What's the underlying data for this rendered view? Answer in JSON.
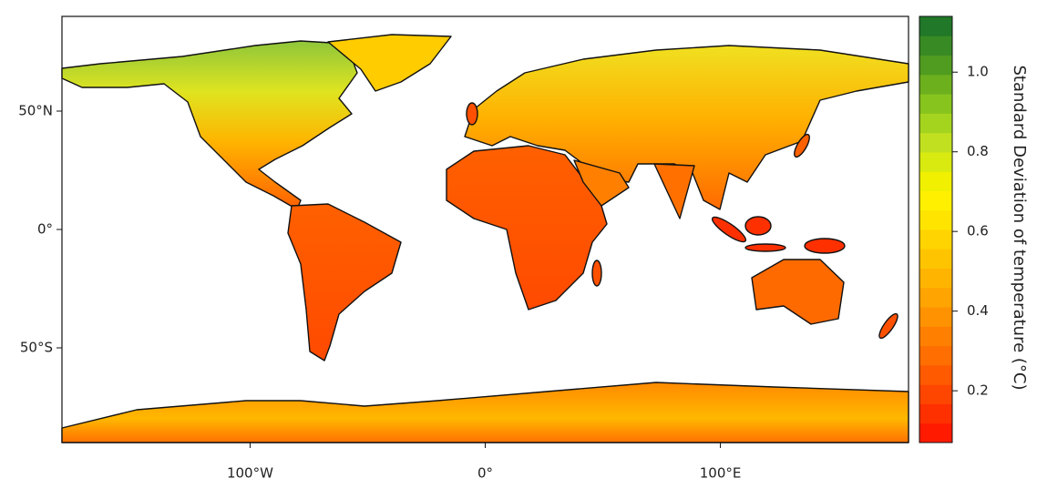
{
  "chart_data": {
    "type": "map",
    "xlim": [
      -180,
      180
    ],
    "ylim": [
      -90,
      90
    ],
    "xticks": [
      {
        "value": -100,
        "label": "100°W"
      },
      {
        "value": 0,
        "label": "0°"
      },
      {
        "value": 100,
        "label": "100°E"
      }
    ],
    "yticks": [
      {
        "value": 50,
        "label": "50°N"
      },
      {
        "value": 0,
        "label": "0°"
      },
      {
        "value": -50,
        "label": "50°S"
      }
    ],
    "colorbar": {
      "label": "Standard Deviation of temperature (°C)",
      "lim": [
        0.07,
        1.14
      ],
      "ticks": [
        0.2,
        0.4,
        0.6,
        0.8,
        {
          "value": 1,
          "label": "1.0"
        }
      ],
      "colors": [
        "#ff1a00",
        "#ff3000",
        "#ff4600",
        "#ff5a00",
        "#ff6e00",
        "#ff8000",
        "#ff9200",
        "#ffa400",
        "#ffb400",
        "#ffc400",
        "#ffd400",
        "#ffe400",
        "#fff000",
        "#f0f000",
        "#d8ea10",
        "#c0e020",
        "#a4d41e",
        "#88c41e",
        "#6cb01e",
        "#509c20",
        "#388a24",
        "#207828"
      ]
    }
  }
}
